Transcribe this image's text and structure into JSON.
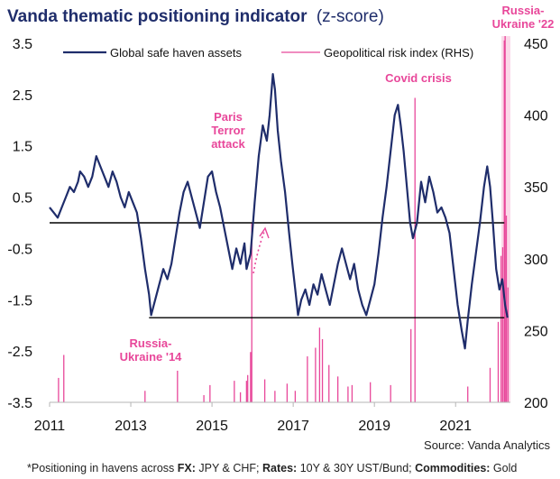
{
  "chart_data": {
    "type": "line",
    "title": "Vanda thematic positioning indicator",
    "title_suffix": "(z-score)",
    "source": "Source: Vanda Analytics",
    "footnote": {
      "prefix": "*Positioning in havens across ",
      "fx_label": "FX:",
      "fx_text": " JPY & CHF; ",
      "rates_label": "Rates:",
      "rates_text": " 10Y & 30Y UST/Bund; ",
      "commodities_label": "Commodities:",
      "commodities_text": " Gold"
    },
    "colors": {
      "primary": "#1f2d6b",
      "secondary": "#e8479a",
      "shade": "#fbd9e9",
      "reference": "#000000"
    },
    "x_ticks": [
      "2011",
      "2013",
      "2015",
      "2017",
      "2019",
      "2021"
    ],
    "x_tick_values": [
      2011,
      2013,
      2015,
      2017,
      2019,
      2021
    ],
    "xlim": [
      2011,
      2022.35
    ],
    "y_left": {
      "ticks": [
        "3.5",
        "2.5",
        "1.5",
        "0.5",
        "-0.5",
        "-1.5",
        "-2.5",
        "-3.5"
      ],
      "range": [
        -3.5,
        3.5
      ]
    },
    "y_right": {
      "ticks": [
        "450",
        "400",
        "350",
        "300",
        "250",
        "200"
      ],
      "range": [
        200,
        450
      ]
    },
    "reference_lines": [
      {
        "y": 0.0,
        "x_from": 2011,
        "x_to": 2022.2
      },
      {
        "y": -1.85,
        "x_from": 2013.45,
        "x_to": 2022.2
      }
    ],
    "series": [
      {
        "name": "Global safe haven assets",
        "axis": "left",
        "points": [
          [
            2011.0,
            0.3
          ],
          [
            2011.1,
            0.2
          ],
          [
            2011.2,
            0.1
          ],
          [
            2011.3,
            0.3
          ],
          [
            2011.4,
            0.5
          ],
          [
            2011.5,
            0.7
          ],
          [
            2011.6,
            0.6
          ],
          [
            2011.7,
            0.8
          ],
          [
            2011.75,
            1.0
          ],
          [
            2011.85,
            0.9
          ],
          [
            2011.95,
            0.7
          ],
          [
            2012.05,
            0.9
          ],
          [
            2012.15,
            1.3
          ],
          [
            2012.25,
            1.1
          ],
          [
            2012.35,
            0.9
          ],
          [
            2012.45,
            0.7
          ],
          [
            2012.55,
            1.0
          ],
          [
            2012.65,
            0.8
          ],
          [
            2012.75,
            0.5
          ],
          [
            2012.85,
            0.3
          ],
          [
            2012.95,
            0.6
          ],
          [
            2013.05,
            0.4
          ],
          [
            2013.15,
            0.2
          ],
          [
            2013.25,
            -0.3
          ],
          [
            2013.35,
            -0.9
          ],
          [
            2013.45,
            -1.4
          ],
          [
            2013.5,
            -1.8
          ],
          [
            2013.6,
            -1.5
          ],
          [
            2013.7,
            -1.2
          ],
          [
            2013.8,
            -0.9
          ],
          [
            2013.9,
            -1.1
          ],
          [
            2014.0,
            -0.8
          ],
          [
            2014.1,
            -0.3
          ],
          [
            2014.2,
            0.2
          ],
          [
            2014.3,
            0.6
          ],
          [
            2014.4,
            0.8
          ],
          [
            2014.5,
            0.5
          ],
          [
            2014.6,
            0.2
          ],
          [
            2014.7,
            -0.1
          ],
          [
            2014.8,
            0.4
          ],
          [
            2014.9,
            0.9
          ],
          [
            2015.0,
            1.0
          ],
          [
            2015.1,
            0.6
          ],
          [
            2015.2,
            0.3
          ],
          [
            2015.3,
            -0.1
          ],
          [
            2015.4,
            -0.5
          ],
          [
            2015.5,
            -0.9
          ],
          [
            2015.6,
            -0.5
          ],
          [
            2015.7,
            -0.8
          ],
          [
            2015.8,
            -0.4
          ],
          [
            2015.85,
            -0.9
          ],
          [
            2015.95,
            -0.6
          ],
          [
            2016.05,
            0.4
          ],
          [
            2016.15,
            1.3
          ],
          [
            2016.25,
            1.9
          ],
          [
            2016.35,
            1.6
          ],
          [
            2016.42,
            2.1
          ],
          [
            2016.5,
            2.9
          ],
          [
            2016.55,
            2.6
          ],
          [
            2016.62,
            1.8
          ],
          [
            2016.7,
            1.2
          ],
          [
            2016.8,
            0.6
          ],
          [
            2016.9,
            -0.2
          ],
          [
            2016.98,
            -0.8
          ],
          [
            2017.05,
            -1.3
          ],
          [
            2017.12,
            -1.8
          ],
          [
            2017.2,
            -1.5
          ],
          [
            2017.3,
            -1.3
          ],
          [
            2017.4,
            -1.6
          ],
          [
            2017.5,
            -1.2
          ],
          [
            2017.6,
            -1.4
          ],
          [
            2017.7,
            -1.0
          ],
          [
            2017.8,
            -1.3
          ],
          [
            2017.9,
            -1.6
          ],
          [
            2018.0,
            -1.2
          ],
          [
            2018.1,
            -0.8
          ],
          [
            2018.2,
            -0.5
          ],
          [
            2018.3,
            -0.8
          ],
          [
            2018.4,
            -1.1
          ],
          [
            2018.5,
            -0.8
          ],
          [
            2018.6,
            -1.3
          ],
          [
            2018.7,
            -1.6
          ],
          [
            2018.8,
            -1.8
          ],
          [
            2018.9,
            -1.5
          ],
          [
            2019.0,
            -1.2
          ],
          [
            2019.1,
            -0.6
          ],
          [
            2019.2,
            0.1
          ],
          [
            2019.3,
            0.7
          ],
          [
            2019.4,
            1.4
          ],
          [
            2019.5,
            2.1
          ],
          [
            2019.58,
            2.3
          ],
          [
            2019.65,
            1.9
          ],
          [
            2019.72,
            1.4
          ],
          [
            2019.8,
            0.7
          ],
          [
            2019.88,
            0.0
          ],
          [
            2019.95,
            -0.3
          ],
          [
            2020.05,
            0.0
          ],
          [
            2020.15,
            0.8
          ],
          [
            2020.25,
            0.4
          ],
          [
            2020.35,
            0.9
          ],
          [
            2020.45,
            0.6
          ],
          [
            2020.55,
            0.2
          ],
          [
            2020.65,
            0.3
          ],
          [
            2020.75,
            0.1
          ],
          [
            2020.85,
            -0.2
          ],
          [
            2020.95,
            -0.9
          ],
          [
            2021.05,
            -1.6
          ],
          [
            2021.15,
            -2.1
          ],
          [
            2021.23,
            -2.45
          ],
          [
            2021.3,
            -1.9
          ],
          [
            2021.4,
            -1.2
          ],
          [
            2021.5,
            -0.6
          ],
          [
            2021.6,
            0.0
          ],
          [
            2021.7,
            0.7
          ],
          [
            2021.78,
            1.1
          ],
          [
            2021.85,
            0.7
          ],
          [
            2021.92,
            0.0
          ],
          [
            2022.0,
            -0.9
          ],
          [
            2022.08,
            -1.3
          ],
          [
            2022.15,
            -1.1
          ],
          [
            2022.22,
            -1.6
          ],
          [
            2022.28,
            -1.85
          ]
        ]
      },
      {
        "name": "Geopolitical risk index (RHS)",
        "axis": "right",
        "points": [
          [
            2011.22,
            217
          ],
          [
            2011.35,
            233
          ],
          [
            2013.35,
            208
          ],
          [
            2014.15,
            222
          ],
          [
            2014.8,
            205
          ],
          [
            2014.95,
            212
          ],
          [
            2015.55,
            215
          ],
          [
            2015.7,
            207
          ],
          [
            2015.85,
            215
          ],
          [
            2015.88,
            219
          ],
          [
            2015.95,
            235
          ],
          [
            2015.98,
            325
          ],
          [
            2016.3,
            216
          ],
          [
            2016.55,
            208
          ],
          [
            2016.85,
            213
          ],
          [
            2017.05,
            208
          ],
          [
            2017.35,
            232
          ],
          [
            2017.55,
            238
          ],
          [
            2017.65,
            252
          ],
          [
            2017.72,
            244
          ],
          [
            2017.88,
            226
          ],
          [
            2018.1,
            218
          ],
          [
            2018.35,
            211
          ],
          [
            2018.45,
            212
          ],
          [
            2018.9,
            214
          ],
          [
            2019.4,
            212
          ],
          [
            2019.9,
            251
          ],
          [
            2020.0,
            412
          ],
          [
            2021.3,
            211
          ],
          [
            2021.85,
            224
          ],
          [
            2022.05,
            256
          ],
          [
            2022.12,
            302
          ],
          [
            2022.16,
            308
          ],
          [
            2022.2,
            452
          ],
          [
            2022.22,
            455
          ],
          [
            2022.25,
            330
          ],
          [
            2022.29,
            280
          ]
        ]
      }
    ],
    "shaded_region": {
      "x_from": 2022.13,
      "x_to": 2022.35
    },
    "annotations": [
      {
        "lines": [
          "Paris",
          "Terror",
          "attack"
        ]
      },
      {
        "lines": [
          "Covid crisis"
        ]
      },
      {
        "lines": [
          "Russia-",
          "Ukraine '22"
        ]
      },
      {
        "lines": [
          "Russia-",
          "Ukraine '14"
        ]
      }
    ],
    "legend_position": "top"
  }
}
